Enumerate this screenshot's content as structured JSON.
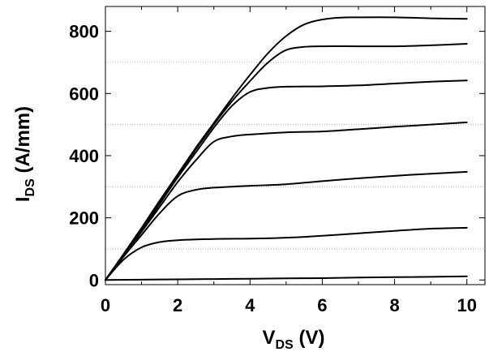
{
  "chart_data": {
    "type": "line",
    "title": "",
    "xlabel": {
      "main": "V",
      "sub": "DS",
      "unit": " (V)"
    },
    "ylabel": {
      "main": "I",
      "sub": "DS",
      "unit": " (A/mm)"
    },
    "xlim": [
      0,
      10.5
    ],
    "ylim": [
      -15,
      880
    ],
    "xticks": [
      0,
      2,
      4,
      6,
      8,
      10
    ],
    "xtick_labels": [
      "0",
      "2",
      "4",
      "6",
      "8",
      "10"
    ],
    "yticks": [
      0,
      200,
      400,
      600,
      800
    ],
    "ytick_labels": [
      "0",
      "200",
      "400",
      "600",
      "800"
    ],
    "grid": {
      "y_dotted": [
        100,
        300,
        500,
        700
      ]
    },
    "legend": "none",
    "line_color": "#000000",
    "series": [
      {
        "x": [
          0,
          1,
          2,
          3,
          4,
          5,
          6,
          7,
          8,
          9,
          10
        ],
        "values": [
          0,
          1,
          2,
          3,
          4,
          5,
          6,
          8,
          9,
          10,
          12
        ]
      },
      {
        "x": [
          0,
          0.5,
          1,
          1.5,
          2,
          3,
          4,
          5,
          6,
          7,
          8,
          9,
          10
        ],
        "values": [
          0,
          65,
          105,
          122,
          128,
          132,
          133,
          136,
          142,
          150,
          158,
          165,
          168
        ]
      },
      {
        "x": [
          0,
          0.5,
          1,
          1.5,
          2,
          2.5,
          3,
          4,
          5,
          6,
          7,
          8,
          9,
          10
        ],
        "values": [
          0,
          75,
          145,
          215,
          270,
          290,
          297,
          303,
          308,
          318,
          327,
          335,
          342,
          348
        ]
      },
      {
        "x": [
          0,
          0.5,
          1,
          1.5,
          2,
          2.5,
          3,
          3.5,
          4,
          5,
          6,
          7,
          8,
          9,
          10
        ],
        "values": [
          0,
          78,
          155,
          235,
          315,
          385,
          445,
          462,
          468,
          475,
          478,
          485,
          493,
          500,
          507
        ]
      },
      {
        "x": [
          0,
          0.5,
          1,
          1.5,
          2,
          2.5,
          3,
          3.5,
          4,
          4.5,
          5,
          6,
          7,
          8,
          9,
          10
        ],
        "values": [
          0,
          80,
          160,
          245,
          330,
          410,
          490,
          560,
          605,
          618,
          622,
          623,
          626,
          632,
          638,
          642
        ]
      },
      {
        "x": [
          0,
          0.5,
          1,
          1.5,
          2,
          2.5,
          3,
          3.5,
          4,
          4.5,
          5,
          5.5,
          6,
          7,
          8,
          9,
          10
        ],
        "values": [
          0,
          82,
          165,
          250,
          335,
          420,
          500,
          575,
          640,
          700,
          740,
          750,
          752,
          752,
          752,
          755,
          760
        ]
      },
      {
        "x": [
          0,
          0.5,
          1,
          1.5,
          2,
          2.5,
          3,
          3.5,
          4,
          4.5,
          5,
          5.5,
          6,
          6.5,
          7,
          8,
          9,
          10
        ],
        "values": [
          0,
          83,
          168,
          255,
          340,
          425,
          505,
          585,
          660,
          730,
          785,
          822,
          838,
          844,
          845,
          845,
          842,
          840
        ]
      }
    ]
  }
}
